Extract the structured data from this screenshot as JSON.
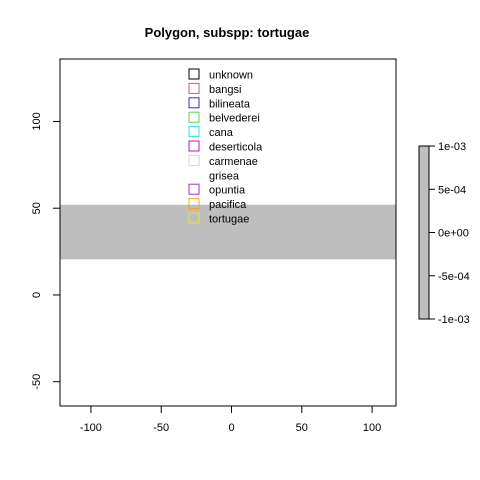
{
  "chart_data": {
    "type": "area",
    "title": "Polygon, subspp: tortugae",
    "xlabel": "",
    "ylabel": "",
    "xlim": [
      -122,
      117
    ],
    "ylim": [
      -64,
      136
    ],
    "x_ticks": [
      -100,
      -50,
      0,
      50,
      100
    ],
    "x_tick_labels": [
      "-100",
      "-50",
      "0",
      "50",
      "100"
    ],
    "y_ticks": [
      -50,
      0,
      50,
      100
    ],
    "y_tick_labels": [
      "-50",
      "0",
      "50",
      "100"
    ],
    "band": {
      "x_from": -122,
      "x_to": 117,
      "y_from": 20.5,
      "y_to": 52,
      "color": "#bebebe"
    },
    "legend": {
      "placement": "top-center",
      "entries": [
        {
          "label": "unknown",
          "color": "#000000",
          "swatch": true
        },
        {
          "label": "bangsi",
          "color": "#df536b",
          "swatch": true
        },
        {
          "label": "bilineata",
          "color": "#2a2ad6",
          "swatch": true
        },
        {
          "label": "belvederei",
          "color": "#61d04f",
          "swatch": true
        },
        {
          "label": "cana",
          "color": "#28e2e5",
          "swatch": true
        },
        {
          "label": "deserticola",
          "color": "#cd0bbc",
          "swatch": true
        },
        {
          "label": "carmenae",
          "color": "#f5c7c7",
          "swatch": true
        },
        {
          "label": "grisea",
          "color": "#ffffff",
          "swatch": false
        },
        {
          "label": "opuntia",
          "color": "#9b30c9",
          "swatch": true
        },
        {
          "label": "pacifica",
          "color": "#f5a623",
          "swatch": true
        },
        {
          "label": "tortugae",
          "color": "#e6e62a",
          "swatch": true
        }
      ]
    },
    "colorbar": {
      "range": [
        -0.001,
        0.001
      ],
      "ticks": [
        0.001,
        0.0005,
        0,
        -0.0005,
        -0.001
      ],
      "tick_labels": [
        "1e-03",
        "5e-04",
        "0e+00",
        "-5e-04",
        "-1e-03"
      ],
      "fill_color": "#bebebe"
    }
  }
}
